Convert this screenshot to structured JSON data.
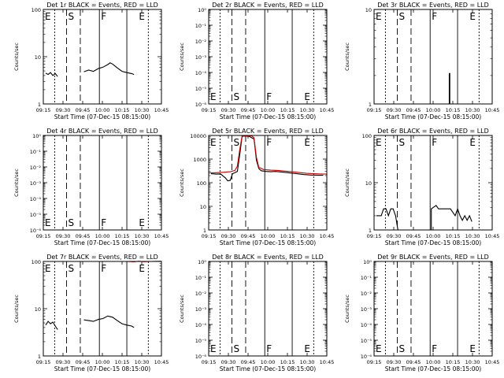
{
  "chart_data": [
    {
      "type": "line",
      "title": "Det 1r BLACK = Events, RED = LLD",
      "xlabel": "Start Time (07-Dec-15 08:15:00)",
      "ylabel": "Counts/sec",
      "xticks": [
        "09:15",
        "09:30",
        "09:45",
        "10:00",
        "10:15",
        "10:30",
        "10:45"
      ],
      "xlim": [
        0,
        99
      ],
      "yscale": "log",
      "ylim": [
        1,
        100
      ],
      "yticks": [
        "1",
        "10",
        "100"
      ],
      "markers": {
        "S": 30,
        "F": 47,
        "E_start": 0,
        "E_end": 88
      },
      "marker_labels": {
        "E1": "E",
        "S": "S",
        "F": "F",
        "E2": "E"
      },
      "marker_label_pos": "top",
      "series": [
        {
          "color": "#000000",
          "segments": [
            [
              [
                2,
                4.5
              ],
              [
                4,
                4.2
              ],
              [
                6,
                4.6
              ],
              [
                8,
                4.0
              ],
              [
                10,
                4.4
              ],
              [
                12,
                3.8
              ]
            ],
            [
              [
                34,
                4.8
              ],
              [
                38,
                5.2
              ],
              [
                42,
                4.9
              ],
              [
                46,
                5.6
              ],
              [
                50,
                6.0
              ],
              [
                54,
                6.8
              ],
              [
                56,
                7.4
              ],
              [
                58,
                7.0
              ],
              [
                62,
                5.8
              ],
              [
                66,
                4.9
              ],
              [
                70,
                4.6
              ],
              [
                74,
                4.4
              ],
              [
                76,
                4.2
              ]
            ]
          ]
        }
      ]
    },
    {
      "type": "line",
      "title": "Det 2r BLACK = Events, RED = LLD",
      "xlabel": "Start Time (07-Dec-15 08:15:00)",
      "ylabel": "Counts/sec",
      "xticks": [
        "09:15",
        "09:30",
        "09:45",
        "10:00",
        "10:15",
        "10:30",
        "10:45"
      ],
      "xlim": [
        0,
        99
      ],
      "yscale": "log",
      "ylim": [
        1e-06,
        1
      ],
      "yticks": [
        "10⁻⁶",
        "10⁻⁵",
        "10⁻⁴",
        "10⁻³",
        "10⁻²",
        "10⁻¹",
        "10⁰"
      ],
      "markers": {
        "S": 30,
        "F": 47,
        "E_start": 0,
        "E_end": 88
      },
      "marker_labels": {
        "E1": "E",
        "S": "S",
        "F": "F",
        "E2": "E"
      },
      "marker_label_pos": "bottom",
      "series": []
    },
    {
      "type": "line",
      "title": "Det 3r BLACK = Events, RED = LLD",
      "xlabel": "Start Time (07-Dec-15 08:15:00)",
      "ylabel": "Counts/sec",
      "xticks": [
        "09:15",
        "09:30",
        "09:45",
        "10:00",
        "10:15",
        "10:30",
        "10:45"
      ],
      "xlim": [
        0,
        99
      ],
      "yscale": "log",
      "ylim": [
        1,
        10
      ],
      "yticks": [
        "1",
        "10"
      ],
      "markers": {
        "S": 30,
        "F": 47,
        "E_start": 0,
        "E_end": 88
      },
      "marker_labels": {
        "E1": "E",
        "S": "S",
        "F": "F",
        "E2": "E"
      },
      "marker_label_pos": "top",
      "series": [
        {
          "color": "#000000",
          "segments": [
            [
              [
                63,
                1
              ],
              [
                63,
                2.1
              ],
              [
                63.5,
                2.1
              ],
              [
                63.5,
                1
              ]
            ]
          ]
        }
      ]
    },
    {
      "type": "line",
      "title": "Det 4r BLACK = Events, RED = LLD",
      "xlabel": "Start Time (07-Dec-15 08:15:00)",
      "ylabel": "Counts/sec",
      "xticks": [
        "09:15",
        "09:30",
        "09:45",
        "10:00",
        "10:15",
        "10:30",
        "10:45"
      ],
      "xlim": [
        0,
        99
      ],
      "yscale": "log",
      "ylim": [
        1e-06,
        1
      ],
      "yticks": [
        "10⁻⁶",
        "10⁻⁵",
        "10⁻⁴",
        "10⁻³",
        "10⁻²",
        "10⁻¹",
        "10⁰"
      ],
      "markers": {
        "S": 30,
        "F": 47,
        "E_start": 0,
        "E_end": 88
      },
      "marker_labels": {
        "E1": "E",
        "S": "S",
        "F": "F",
        "E2": "E"
      },
      "marker_label_pos": "bottom",
      "series": []
    },
    {
      "type": "line",
      "title": "Det 5r BLACK = Events, RED = LLD",
      "xlabel": "Start Time (07-Dec-15 08:15:00)",
      "ylabel": "Counts/sec",
      "xticks": [
        "09:15",
        "09:30",
        "09:45",
        "10:00",
        "10:15",
        "10:30",
        "10:45"
      ],
      "xlim": [
        0,
        99
      ],
      "yscale": "log",
      "ylim": [
        1,
        10000
      ],
      "yticks": [
        "1",
        "10",
        "100",
        "1000",
        "10000"
      ],
      "markers": {
        "S": 30,
        "F": 47,
        "E_start": 0,
        "E_end": 88
      },
      "marker_labels": {
        "E1": "E",
        "S": "S",
        "F": "F",
        "E2": "E"
      },
      "marker_label_pos": "top",
      "series": [
        {
          "color": "#000000",
          "segments": [
            [
              [
                2,
                240
              ],
              [
                6,
                230
              ],
              [
                10,
                235
              ],
              [
                14,
                160
              ],
              [
                16,
                120
              ],
              [
                18,
                125
              ],
              [
                20,
                240
              ],
              [
                24,
                300
              ],
              [
                26,
                1500
              ],
              [
                28,
                9000
              ],
              [
                30,
                9500
              ],
              [
                34,
                9200
              ],
              [
                38,
                7000
              ],
              [
                40,
                900
              ],
              [
                42,
                400
              ],
              [
                44,
                320
              ],
              [
                48,
                300
              ],
              [
                52,
                290
              ],
              [
                56,
                300
              ],
              [
                62,
                280
              ],
              [
                68,
                260
              ],
              [
                74,
                240
              ],
              [
                80,
                220
              ],
              [
                86,
                210
              ],
              [
                92,
                205
              ],
              [
                96,
                205
              ]
            ]
          ]
        },
        {
          "color": "#cc0000",
          "segments": [
            [
              [
                0,
                260
              ],
              [
                6,
                265
              ],
              [
                12,
                275
              ],
              [
                18,
                290
              ],
              [
                22,
                330
              ],
              [
                24,
                500
              ],
              [
                26,
                2500
              ],
              [
                28,
                9300
              ],
              [
                32,
                9800
              ],
              [
                36,
                9600
              ],
              [
                38,
                8000
              ],
              [
                40,
                1200
              ],
              [
                42,
                450
              ],
              [
                46,
                360
              ],
              [
                52,
                340
              ],
              [
                58,
                330
              ],
              [
                64,
                310
              ],
              [
                70,
                290
              ],
              [
                76,
                270
              ],
              [
                82,
                250
              ],
              [
                88,
                240
              ],
              [
                94,
                235
              ],
              [
                99,
                230
              ]
            ]
          ]
        }
      ]
    },
    {
      "type": "line",
      "title": "Det 6r BLACK = Events, RED = LLD",
      "xlabel": "Start Time (07-Dec-15 08:15:00)",
      "ylabel": "Counts/sec",
      "xticks": [
        "09:15",
        "09:30",
        "09:45",
        "10:00",
        "10:15",
        "10:30",
        "10:45"
      ],
      "xlim": [
        0,
        99
      ],
      "yscale": "log",
      "ylim": [
        1,
        100
      ],
      "yticks": [
        "1",
        "10",
        "100"
      ],
      "markers": {
        "S": 30,
        "F": 47,
        "E_start": 0,
        "E_end": 88
      },
      "marker_labels": {
        "E1": "E",
        "S": "S",
        "F": "F",
        "E2": "E"
      },
      "marker_label_pos": "top",
      "series": [
        {
          "color": "#000000",
          "segments": [
            [
              [
                2,
                2
              ],
              [
                6,
                2
              ],
              [
                8,
                2.8
              ],
              [
                10,
                2.8
              ],
              [
                12,
                2
              ],
              [
                14,
                2.8
              ],
              [
                16,
                2.8
              ],
              [
                18,
                2
              ],
              [
                20,
                1
              ]
            ],
            [
              [
                48,
                1
              ],
              [
                48,
                2.8
              ],
              [
                52,
                3.3
              ],
              [
                54,
                2.8
              ],
              [
                58,
                2.8
              ],
              [
                62,
                2.8
              ],
              [
                64,
                2.8
              ],
              [
                68,
                2
              ],
              [
                70,
                2.8
              ],
              [
                72,
                2
              ],
              [
                74,
                1.6
              ],
              [
                76,
                2
              ],
              [
                78,
                1.6
              ],
              [
                80,
                2
              ],
              [
                82,
                1.5
              ]
            ]
          ]
        }
      ]
    },
    {
      "type": "line",
      "title": "Det 7r BLACK = Events, RED = LLD",
      "xlabel": "Start Time (07-Dec-15 08:15:00)",
      "ylabel": "Counts/sec",
      "xticks": [
        "09:15",
        "09:30",
        "09:45",
        "10:00",
        "10:15",
        "10:30",
        "10:45"
      ],
      "xlim": [
        0,
        99
      ],
      "yscale": "log",
      "ylim": [
        1,
        100
      ],
      "yticks": [
        "1",
        "10",
        "100"
      ],
      "markers": {
        "S": 30,
        "F": 47,
        "E_start": 0,
        "E_end": 88
      },
      "marker_labels": {
        "E1": "E",
        "S": "S",
        "F": "F",
        "E2": "E"
      },
      "marker_label_pos": "top",
      "series": [
        {
          "color": "#000000",
          "segments": [
            [
              [
                2,
                4.5
              ],
              [
                4,
                5.4
              ],
              [
                6,
                4.8
              ],
              [
                8,
                5.2
              ],
              [
                10,
                4.3
              ],
              [
                12,
                3.6
              ]
            ],
            [
              [
                34,
                5.8
              ],
              [
                38,
                5.6
              ],
              [
                42,
                5.4
              ],
              [
                46,
                5.9
              ],
              [
                50,
                6.2
              ],
              [
                54,
                7.0
              ],
              [
                58,
                6.6
              ],
              [
                62,
                5.6
              ],
              [
                66,
                4.8
              ],
              [
                70,
                4.5
              ],
              [
                74,
                4.3
              ],
              [
                76,
                4.0
              ]
            ]
          ]
        },
        {
          "color": "#cc0000",
          "segments": [
            [
              [
                70,
                100
              ],
              [
                76,
                98
              ],
              [
                80,
                101
              ],
              [
                84,
                99
              ],
              [
                90,
                100
              ],
              [
                99,
                101
              ]
            ]
          ]
        }
      ]
    },
    {
      "type": "line",
      "title": "Det 8r BLACK = Events, RED = LLD",
      "xlabel": "Start Time (07-Dec-15 08:15:00)",
      "ylabel": "Counts/sec",
      "xticks": [
        "09:15",
        "09:30",
        "09:45",
        "10:00",
        "10:15",
        "10:30",
        "10:45"
      ],
      "xlim": [
        0,
        99
      ],
      "yscale": "log",
      "ylim": [
        1e-06,
        1
      ],
      "yticks": [
        "10⁻⁶",
        "10⁻⁵",
        "10⁻⁴",
        "10⁻³",
        "10⁻²",
        "10⁻¹",
        "10⁰"
      ],
      "markers": {
        "S": 30,
        "F": 47,
        "E_start": 0,
        "E_end": 88
      },
      "marker_labels": {
        "E1": "E",
        "S": "S",
        "F": "F",
        "E2": "E"
      },
      "marker_label_pos": "bottom",
      "series": []
    },
    {
      "type": "line",
      "title": "Det 9r BLACK = Events, RED = LLD",
      "xlabel": "Start Time (07-Dec-15 08:15:00)",
      "ylabel": "Counts/sec",
      "xticks": [
        "09:15",
        "09:30",
        "09:45",
        "10:00",
        "10:15",
        "10:30",
        "10:45"
      ],
      "xlim": [
        0,
        99
      ],
      "yscale": "log",
      "ylim": [
        1e-06,
        1
      ],
      "yticks": [
        "10⁻⁶",
        "10⁻⁵",
        "10⁻⁴",
        "10⁻³",
        "10⁻²",
        "10⁻¹",
        "10⁰"
      ],
      "markers": {
        "S": 30,
        "F": 47,
        "E_start": 0,
        "E_end": 88
      },
      "marker_labels": {
        "E1": "E",
        "S": "S",
        "F": "F",
        "E2": "E"
      },
      "marker_label_pos": "bottom",
      "series": []
    }
  ]
}
